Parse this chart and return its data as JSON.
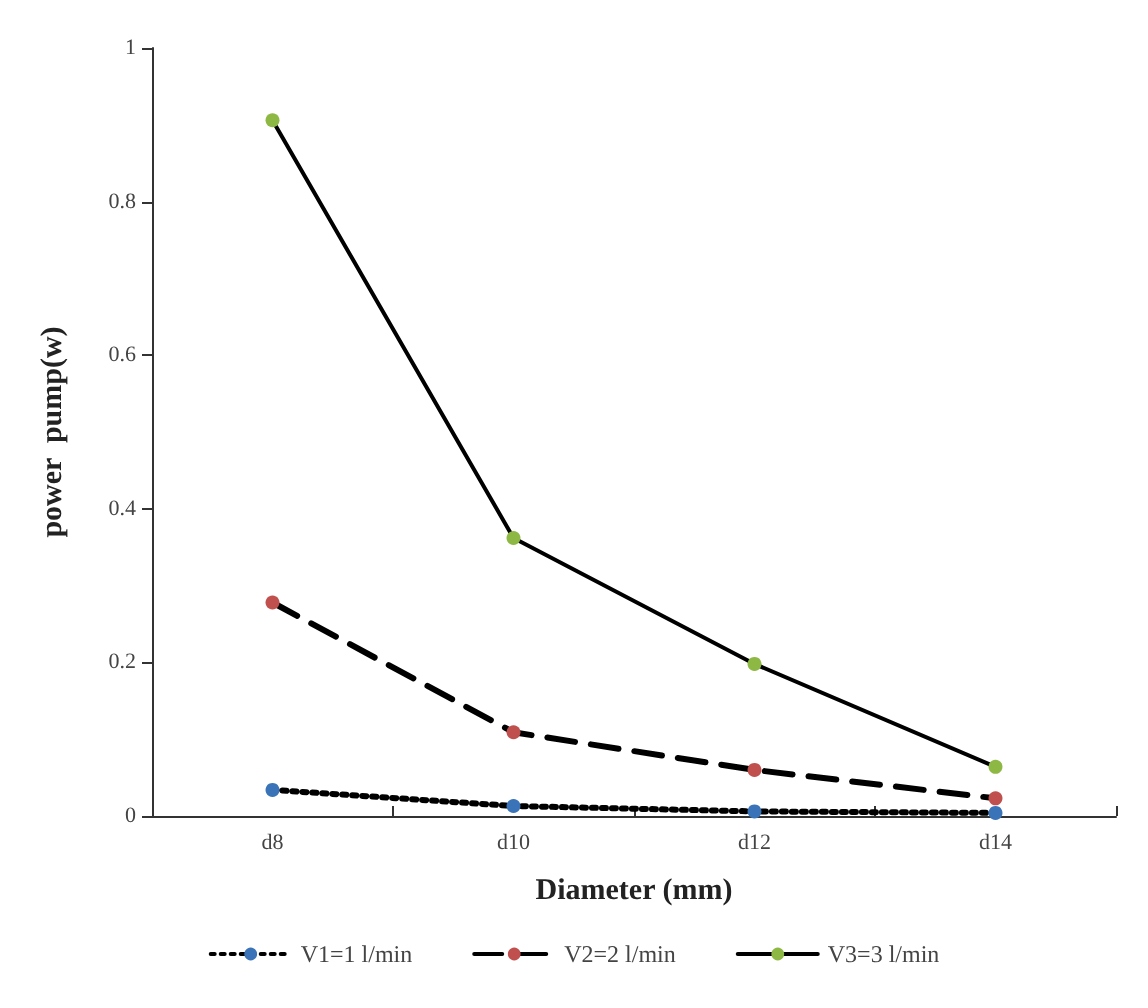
{
  "chart_data": {
    "type": "line",
    "xlabel": "Diameter (mm)",
    "ylabel": "power  pump(w)",
    "categories": [
      "d8",
      "d10",
      "d12",
      "d14"
    ],
    "series": [
      {
        "name": "V1=1 l/min",
        "color": "#3a73b8",
        "line_style": "dotted",
        "values": [
          0.034,
          0.013,
          0.006,
          0.004
        ]
      },
      {
        "name": "V2=2 l/min",
        "color": "#c0504d",
        "line_style": "dashed",
        "values": [
          0.278,
          0.109,
          0.06,
          0.023
        ]
      },
      {
        "name": "V3=3 l/min",
        "color": "#8db843",
        "line_style": "solid",
        "values": [
          0.906,
          0.362,
          0.198,
          0.064
        ]
      }
    ],
    "ylim": [
      0,
      1
    ],
    "yticks": [
      0,
      0.2,
      0.4,
      0.6,
      0.8,
      1
    ],
    "grid": false,
    "legend": "bottom",
    "marker": "circle"
  }
}
